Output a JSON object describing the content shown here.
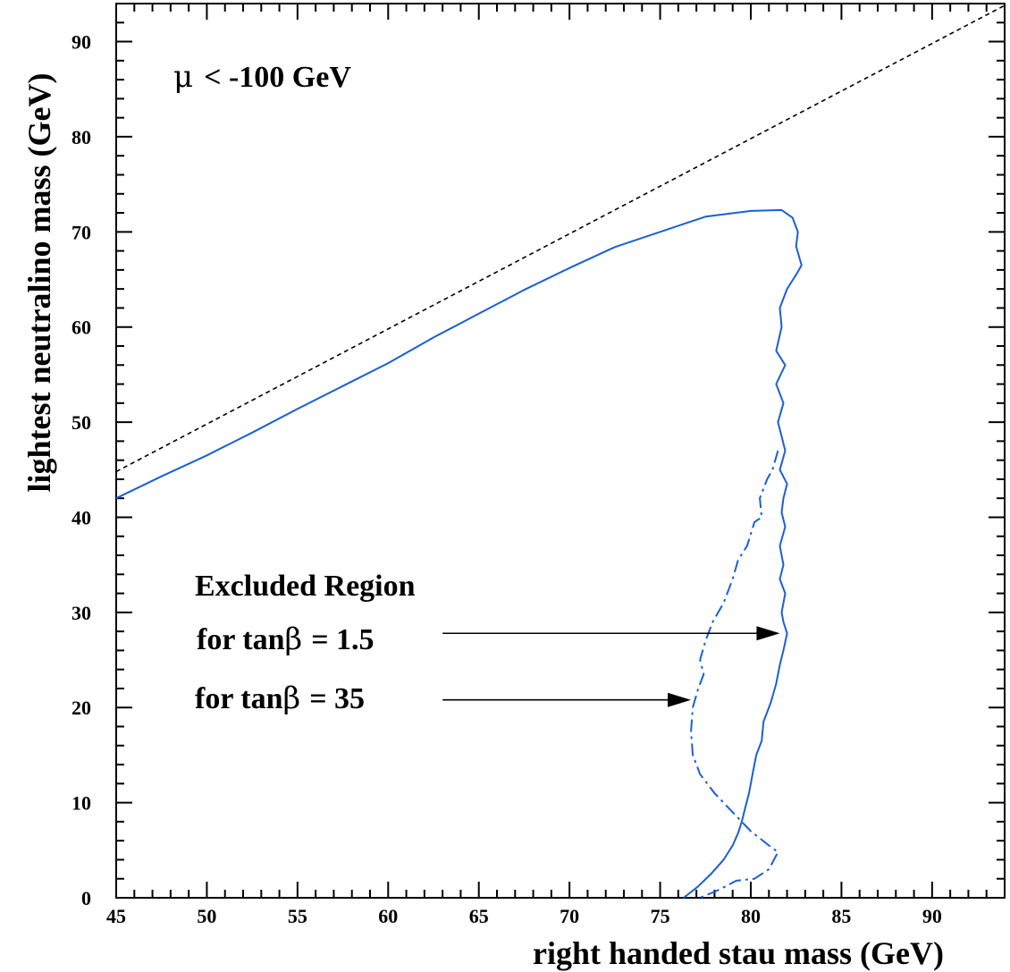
{
  "chart_data": {
    "type": "line",
    "xlabel": "right handed stau mass (GeV)",
    "ylabel": "lightest neutralino mass (GeV)",
    "xlim": [
      45,
      94
    ],
    "ylim": [
      0,
      94
    ],
    "xticks": [
      45,
      50,
      55,
      60,
      65,
      70,
      75,
      80,
      85,
      90
    ],
    "yticks": [
      0,
      10,
      20,
      30,
      40,
      50,
      60,
      70,
      80,
      90
    ],
    "colors": {
      "solid": "#1a5fd6",
      "dashdot": "#1a5fd6",
      "kinematic": "#000000",
      "arrows": "#000000"
    },
    "annotations": {
      "mu_symbol": "μ",
      "mu_text": "< -100 GeV",
      "excluded_region": "Excluded Region",
      "for_tan_prefix": "for tan",
      "beta_symbol": "β",
      "tan_value_1": "= 1.5",
      "tan_value_2": "= 35"
    },
    "series": [
      {
        "style": "dashed-black",
        "x": [
          45,
          94
        ],
        "y": [
          44.8,
          93.8
        ]
      },
      {
        "style": "solid",
        "x": [
          45,
          47.5,
          50,
          52.5,
          55,
          57.5,
          60,
          62.5,
          65,
          67.5,
          70,
          72.5,
          75,
          77.5,
          80,
          81.7,
          82.3,
          82.6,
          82.5,
          82.8,
          82.5,
          82.0,
          81.6,
          81.7,
          81.4,
          81.9,
          81.4,
          81.8,
          81.5,
          81.7,
          81.9,
          81.6,
          82.0,
          81.8,
          81.7,
          81.9,
          81.6,
          81.8,
          81.6,
          81.9,
          81.7,
          81.8,
          82.0,
          81.8,
          81.6,
          81.4,
          81.1,
          80.7,
          80.6,
          80.3,
          80.1,
          79.9,
          79.7,
          79.5,
          79.3,
          79.0,
          78.5,
          77.8,
          77.1,
          76.3
        ],
        "y": [
          42,
          44.3,
          46.5,
          48.9,
          51.4,
          53.8,
          56.2,
          58.9,
          61.4,
          63.9,
          66.2,
          68.4,
          70.0,
          71.6,
          72.2,
          72.3,
          71.5,
          70.0,
          68.5,
          66.5,
          65.5,
          64.0,
          62.0,
          60.0,
          57.5,
          56.0,
          54.0,
          52.0,
          50.0,
          48.5,
          47.0,
          45.0,
          43.5,
          42.0,
          40.5,
          39.0,
          37.0,
          35.0,
          33.5,
          32.0,
          30.0,
          29.0,
          27.8,
          26.0,
          24.5,
          22.5,
          20.5,
          18.5,
          16.5,
          15.0,
          13.0,
          11.0,
          9.5,
          8.0,
          6.8,
          5.5,
          4.0,
          2.5,
          1.2,
          0
        ]
      },
      {
        "style": "dashdot",
        "x": [
          81.5,
          81.2,
          80.9,
          80.5,
          80.6,
          80.2,
          79.8,
          79.3,
          79.0,
          78.5,
          77.9,
          77.5,
          77.2,
          77.4,
          77.1,
          76.8,
          76.7,
          76.8,
          77.2,
          78.0,
          79.0,
          80.0,
          81.0,
          81.5,
          81.0,
          80.2,
          79.2,
          78.2,
          77.2
        ],
        "y": [
          47.0,
          45.0,
          44.0,
          42.0,
          40.0,
          39.5,
          37.0,
          35.5,
          33.5,
          31.0,
          29.0,
          27.0,
          25.0,
          23.5,
          22.0,
          20.0,
          17.5,
          15.0,
          13.0,
          11.0,
          9.0,
          7.0,
          5.5,
          4.8,
          3.0,
          2.0,
          1.8,
          0.8,
          0
        ]
      }
    ]
  }
}
